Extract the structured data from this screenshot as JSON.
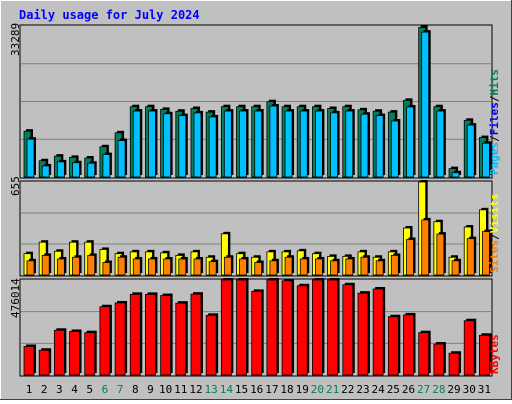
{
  "chart_data": [
    {
      "type": "bar",
      "title": "Daily usage for July 2024",
      "panel": "hits-files-pages",
      "ymax_label": "33289",
      "ylim": [
        0,
        33289
      ],
      "legend": [
        "Pages",
        "/",
        "Files",
        "/",
        "Hits"
      ],
      "legend_placement": "right-vertical",
      "grid": true,
      "categories": [
        "1",
        "2",
        "3",
        "4",
        "5",
        "6",
        "7",
        "8",
        "9",
        "10",
        "11",
        "12",
        "13",
        "14",
        "15",
        "16",
        "17",
        "18",
        "19",
        "20",
        "21",
        "22",
        "23",
        "24",
        "25",
        "26",
        "27",
        "28",
        "29",
        "30",
        "31"
      ],
      "series": [
        {
          "name": "Hits",
          "values": [
            10100,
            3580,
            4600,
            4330,
            4190,
            6660,
            9740,
            15500,
            15500,
            14900,
            14500,
            15100,
            14300,
            15500,
            15500,
            15500,
            16600,
            15500,
            15500,
            15500,
            15100,
            15500,
            14800,
            14500,
            14300,
            16900,
            32960,
            15500,
            1850,
            12500,
            8690
          ]
        },
        {
          "name": "Files",
          "values": [
            9000,
            3100,
            4000,
            3800,
            3700,
            5600,
            8700,
            15200,
            15200,
            14600,
            14200,
            14800,
            13900,
            15200,
            15200,
            15200,
            16300,
            15200,
            15200,
            15200,
            14800,
            15200,
            14500,
            14200,
            13000,
            16100,
            32600,
            15200,
            1600,
            12100,
            8100
          ]
        }
      ]
    },
    {
      "type": "bar",
      "panel": "pages-visits-sites",
      "ymax_label": "655",
      "ylim": [
        0,
        655
      ],
      "legend": [
        "Sites",
        "/",
        "Visits"
      ],
      "legend_placement": "right-vertical",
      "grid": true,
      "categories": [
        "1",
        "2",
        "3",
        "4",
        "5",
        "6",
        "7",
        "8",
        "9",
        "10",
        "11",
        "12",
        "13",
        "14",
        "15",
        "16",
        "17",
        "18",
        "19",
        "20",
        "21",
        "22",
        "23",
        "24",
        "25",
        "26",
        "27",
        "28",
        "29",
        "30",
        "31"
      ],
      "series": [
        {
          "name": "Visits",
          "values": [
            150,
            231,
            167,
            231,
            231,
            180,
            150,
            163,
            163,
            156,
            138,
            163,
            125,
            290,
            150,
            125,
            163,
            163,
            170,
            150,
            131,
            131,
            163,
            125,
            163,
            331,
            655,
            375,
            125,
            338,
            459
          ]
        },
        {
          "name": "Sites",
          "values": [
            100,
            138,
            113,
            125,
            138,
            88,
            125,
            113,
            113,
            113,
            113,
            113,
            94,
            125,
            113,
            88,
            100,
            125,
            113,
            113,
            100,
            113,
            125,
            100,
            138,
            250,
            388,
            288,
            100,
            256,
            306
          ]
        }
      ]
    },
    {
      "type": "bar",
      "panel": "kbytes",
      "ymax_label": "476014",
      "ylim": [
        0,
        476014
      ],
      "legend": [
        "KBytes"
      ],
      "legend_placement": "right-vertical",
      "grid": true,
      "categories": [
        "1",
        "2",
        "3",
        "4",
        "5",
        "6",
        "7",
        "8",
        "9",
        "10",
        "11",
        "12",
        "13",
        "14",
        "15",
        "16",
        "17",
        "18",
        "19",
        "20",
        "21",
        "22",
        "23",
        "24",
        "25",
        "26",
        "27",
        "28",
        "29",
        "30",
        "31"
      ],
      "series": [
        {
          "name": "KBytes",
          "values": [
            143000,
            124000,
            224000,
            218000,
            212000,
            342000,
            361000,
            404000,
            404000,
            398000,
            360000,
            405000,
            299000,
            484000,
            484000,
            419000,
            484000,
            472000,
            447000,
            484000,
            484000,
            452000,
            410000,
            431000,
            292000,
            301000,
            212000,
            155000,
            109000,
            272000,
            199000
          ]
        }
      ]
    }
  ],
  "day_label_colors": {
    "weekday": "#000000",
    "weekend": "#00805c"
  },
  "weekend_days": [
    "6",
    "7",
    "13",
    "14",
    "20",
    "21",
    "27",
    "28"
  ],
  "colors": {
    "frame_bg": "#c0c0c0",
    "plot_bg": "#c0c0c0",
    "grid": "#808080",
    "title": "#0000ff",
    "hits": "#00805c",
    "files": "#0000ff",
    "pages": "#00c0ff",
    "visits": "#ffff00",
    "sites": "#ff8000",
    "kbytes": "#ff0000",
    "slash": "#000000"
  }
}
